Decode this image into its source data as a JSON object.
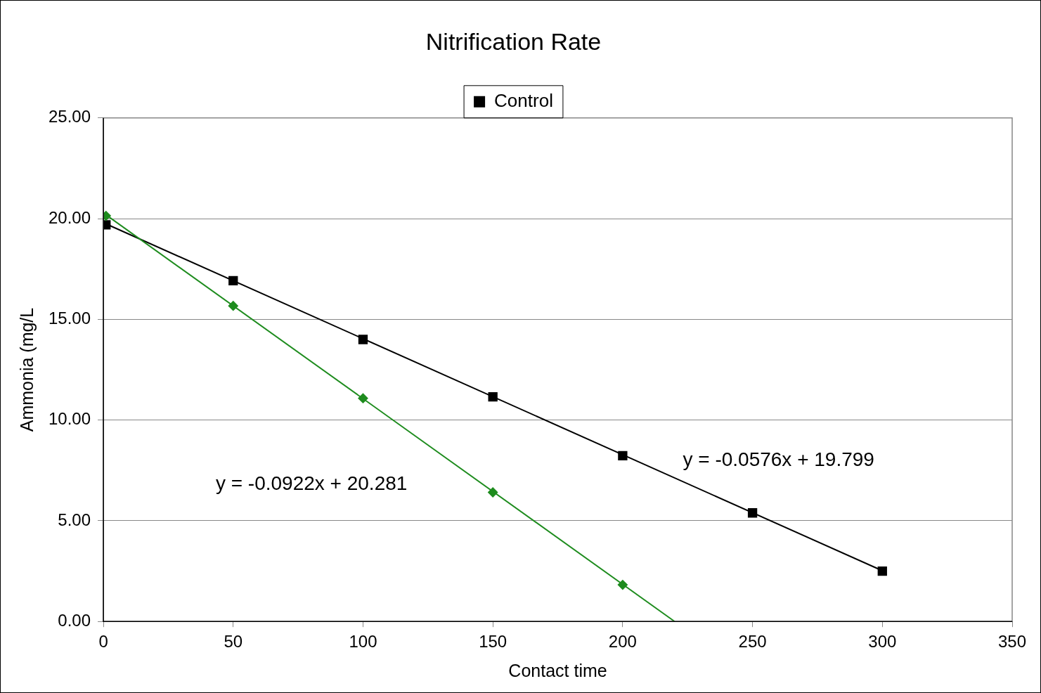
{
  "chart_data": {
    "type": "scatter",
    "title": "Nitrification Rate",
    "xlabel": "Contact time",
    "ylabel": "Ammonia (mg/L",
    "series": [
      {
        "color": "#1e8c1e",
        "marker": "diamond",
        "x": [
          1,
          50,
          100,
          150,
          200
        ],
        "values": [
          20.14,
          15.67,
          11.08,
          6.41,
          1.82
        ]
      },
      {
        "name": "Control",
        "color": "#000000",
        "marker": "square",
        "x": [
          1,
          50,
          100,
          150,
          200,
          250,
          300
        ],
        "values": [
          19.69,
          16.92,
          14.0,
          11.15,
          8.23,
          5.39,
          2.5
        ]
      },
      {
        "type": "line",
        "color": "#1e8c1e",
        "marker": "none",
        "x": [
          1,
          220
        ],
        "values": [
          20.19,
          0
        ]
      },
      {
        "type": "line",
        "color": "#000000",
        "marker": "none",
        "x": [
          1,
          300
        ],
        "values": [
          19.74,
          2.52
        ]
      }
    ],
    "annotations": [
      "y = -0.0922x + 20.281",
      "y = -0.0576x + 19.799"
    ],
    "xlim": [
      0,
      350
    ],
    "xticks": [
      0,
      50,
      100,
      150,
      200,
      250,
      300,
      350
    ],
    "ylim": [
      0,
      25
    ],
    "yticks": [
      {
        "value": 0,
        "label": "0.00"
      },
      {
        "value": 5,
        "label": "5.00"
      },
      {
        "value": 10,
        "label": "10.00"
      },
      {
        "value": 15,
        "label": "15.00"
      },
      {
        "value": 20,
        "label": "20.00"
      },
      {
        "value": 25,
        "label": "25.00"
      }
    ],
    "grid": "y",
    "legend": "top"
  }
}
